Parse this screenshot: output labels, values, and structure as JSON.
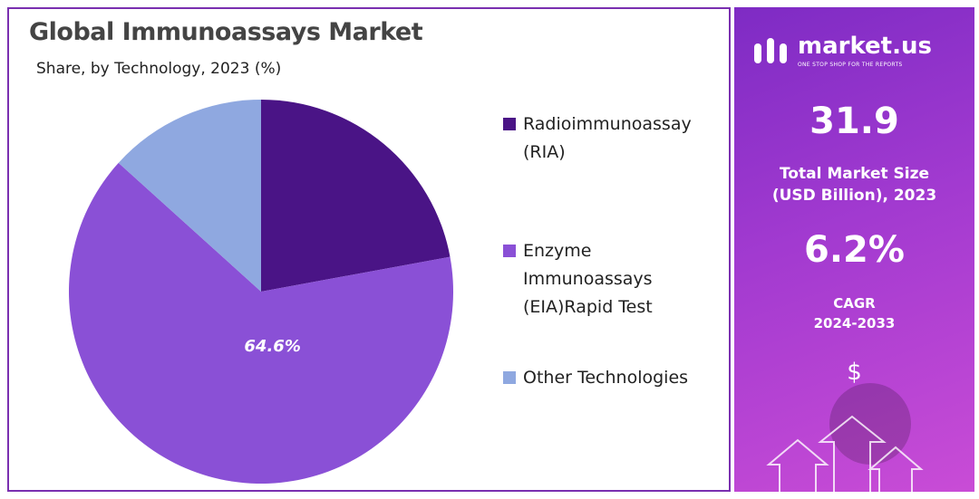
{
  "chart_data": {
    "type": "pie",
    "title": "Global Immunoassays Market",
    "subtitle": "Share, by Technology, 2023 (%)",
    "categories": [
      "Radioimmunoassay\n(RIA)",
      "Enzyme\nImmunoassays\n(EIA)Rapid Test",
      "Other Technologies"
    ],
    "values": [
      22.1,
      64.6,
      13.3
    ],
    "value_labels": [
      null,
      "64.6%",
      null
    ],
    "colors": [
      "#4a1486",
      "#8a50d6",
      "#8fa8e0"
    ]
  },
  "panel": {
    "logo": "market.us",
    "tagline": "ONE STOP SHOP FOR THE REPORTS",
    "market_size": "31.9",
    "market_size_label": "Total Market Size\n(USD Billion), 2023",
    "cagr": "6.2%",
    "cagr_label": "CAGR\n2024-2033",
    "icon": "$"
  }
}
